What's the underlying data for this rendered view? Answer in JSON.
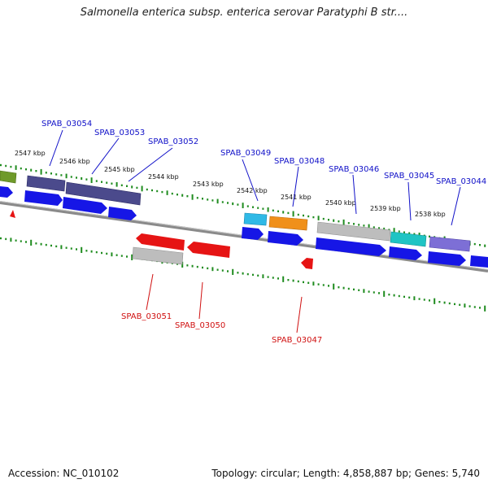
{
  "title": "Salmonella enterica subsp. enterica serovar Paratyphi B str....",
  "footer": {
    "accession": "Accession: NC_010102",
    "topology": "Topology: circular; Length: 4,858,887 bp; Genes: 5,740"
  },
  "colors": {
    "backbone": "#808080",
    "cds_forward": "#1616e6",
    "cds_reverse": "#e61414",
    "gc_tick": "#1f8c1f",
    "gene_grey": "#bdbdbd",
    "gene_navy": "#4b4a8c",
    "gene_cyan": "#2fb9e6",
    "gene_orange": "#f0901a",
    "gene_teal": "#1fc4c4",
    "gene_purple": "#7d6fd6",
    "gene_olive": "#6f9a2a",
    "label_forward": "#1010c8",
    "label_reverse": "#d01010"
  },
  "kbp_labels": [
    "2547 kbp",
    "2546 kbp",
    "2545 kbp",
    "2544 kbp",
    "2543 kbp",
    "2542 kbp",
    "2541 kbp",
    "2540 kbp",
    "2539 kbp",
    "2538 kbp"
  ],
  "genes_forward": [
    "SPAB_03054",
    "SPAB_03053",
    "SPAB_03052",
    "SPAB_03049",
    "SPAB_03048",
    "SPAB_03046",
    "SPAB_03045",
    "SPAB_03044"
  ],
  "genes_reverse": [
    "SPAB_03051",
    "SPAB_03050",
    "SPAB_03047"
  ]
}
